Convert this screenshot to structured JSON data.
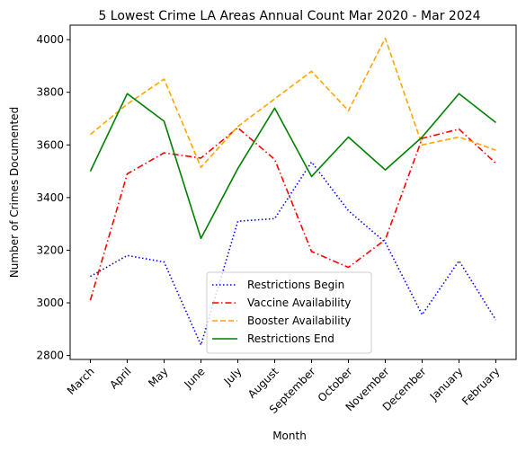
{
  "chart_data": {
    "type": "line",
    "title": "5 Lowest Crime LA Areas Annual Count Mar 2020 - Mar 2024",
    "xlabel": "Month",
    "ylabel": "Number of Crimes Documented",
    "categories": [
      "March",
      "April",
      "May",
      "June",
      "July",
      "August",
      "September",
      "October",
      "November",
      "December",
      "January",
      "February"
    ],
    "ylim": [
      2785,
      4055
    ],
    "yticks": [
      2800,
      3000,
      3200,
      3400,
      3600,
      3800,
      4000
    ],
    "grid": false,
    "legend_position": "lower-center",
    "series": [
      {
        "name": "Restrictions Begin",
        "color": "#0000ff",
        "linestyle": "dotted",
        "values": [
          3100,
          3180,
          3155,
          2840,
          3310,
          3320,
          3535,
          3350,
          3230,
          2955,
          3160,
          2935
        ]
      },
      {
        "name": "Vaccine Availability",
        "color": "#ff0000",
        "linestyle": "dashdot",
        "values": [
          3010,
          3490,
          3570,
          3550,
          3665,
          3545,
          3195,
          3135,
          3240,
          3625,
          3660,
          3530
        ]
      },
      {
        "name": "Booster Availability",
        "color": "#ffa500",
        "linestyle": "dashed",
        "values": [
          3640,
          3755,
          3850,
          3515,
          3670,
          3775,
          3880,
          3730,
          4005,
          3600,
          3630,
          3580
        ]
      },
      {
        "name": "Restrictions End",
        "color": "#008000",
        "linestyle": "solid",
        "values": [
          3500,
          3795,
          3690,
          3245,
          3510,
          3740,
          3480,
          3630,
          3505,
          3630,
          3795,
          3685
        ]
      }
    ]
  }
}
